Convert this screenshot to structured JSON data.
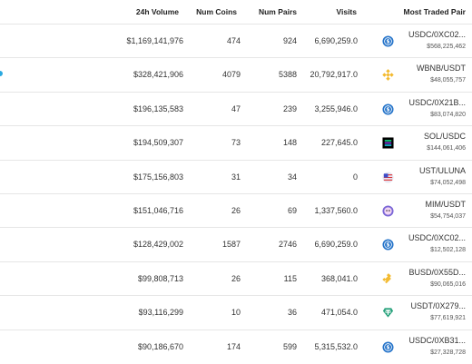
{
  "columns": {
    "volume": "24h Volume",
    "coins": "Num Coins",
    "pairs": "Num Pairs",
    "visits": "Visits",
    "pair": "Most Traded Pair"
  },
  "rows": [
    {
      "volume": "$1,169,141,976",
      "coins": "474",
      "pairs": "924",
      "visits": "6,690,259.0",
      "pair": "USDC/0XC02...",
      "pair_volume": "$568,225,462",
      "icon": "usdc-icon"
    },
    {
      "volume": "$328,421,906",
      "coins": "4079",
      "pairs": "5388",
      "visits": "20,792,917.0",
      "pair": "WBNB/USDT",
      "pair_volume": "$48,055,757",
      "icon": "bnb-icon"
    },
    {
      "volume": "$196,135,583",
      "coins": "47",
      "pairs": "239",
      "visits": "3,255,946.0",
      "pair": "USDC/0X21B...",
      "pair_volume": "$83,074,820",
      "icon": "usdc-icon"
    },
    {
      "volume": "$194,509,307",
      "coins": "73",
      "pairs": "148",
      "visits": "227,645.0",
      "pair": "SOL/USDC",
      "pair_volume": "$144,061,406",
      "icon": "sol-icon"
    },
    {
      "volume": "$175,156,803",
      "coins": "31",
      "pairs": "34",
      "visits": "0",
      "pair": "UST/ULUNA",
      "pair_volume": "$74,052,498",
      "icon": "ust-icon"
    },
    {
      "volume": "$151,046,716",
      "coins": "26",
      "pairs": "69",
      "visits": "1,337,560.0",
      "pair": "MIM/USDT",
      "pair_volume": "$54,754,037",
      "icon": "mim-icon"
    },
    {
      "volume": "$128,429,002",
      "coins": "1587",
      "pairs": "2746",
      "visits": "6,690,259.0",
      "pair": "USDC/0XC02...",
      "pair_volume": "$12,502,128",
      "icon": "usdc-icon"
    },
    {
      "volume": "$99,808,713",
      "coins": "26",
      "pairs": "115",
      "visits": "368,041.0",
      "pair": "BUSD/0X55D...",
      "pair_volume": "$90,065,016",
      "icon": "busd-icon"
    },
    {
      "volume": "$93,116,299",
      "coins": "10",
      "pairs": "36",
      "visits": "471,054.0",
      "pair": "USDT/0X279...",
      "pair_volume": "$77,619,921",
      "icon": "usdt-icon"
    },
    {
      "volume": "$90,186,670",
      "coins": "174",
      "pairs": "599",
      "visits": "5,315,532.0",
      "pair": "USDC/0XB31...",
      "pair_volume": "$27,328,728",
      "icon": "usdc-icon"
    }
  ],
  "colors": {
    "usdc": "#2775ca",
    "bnb": "#f3ba2f",
    "usdt": "#26a17b",
    "mim": "#7b67d6"
  }
}
